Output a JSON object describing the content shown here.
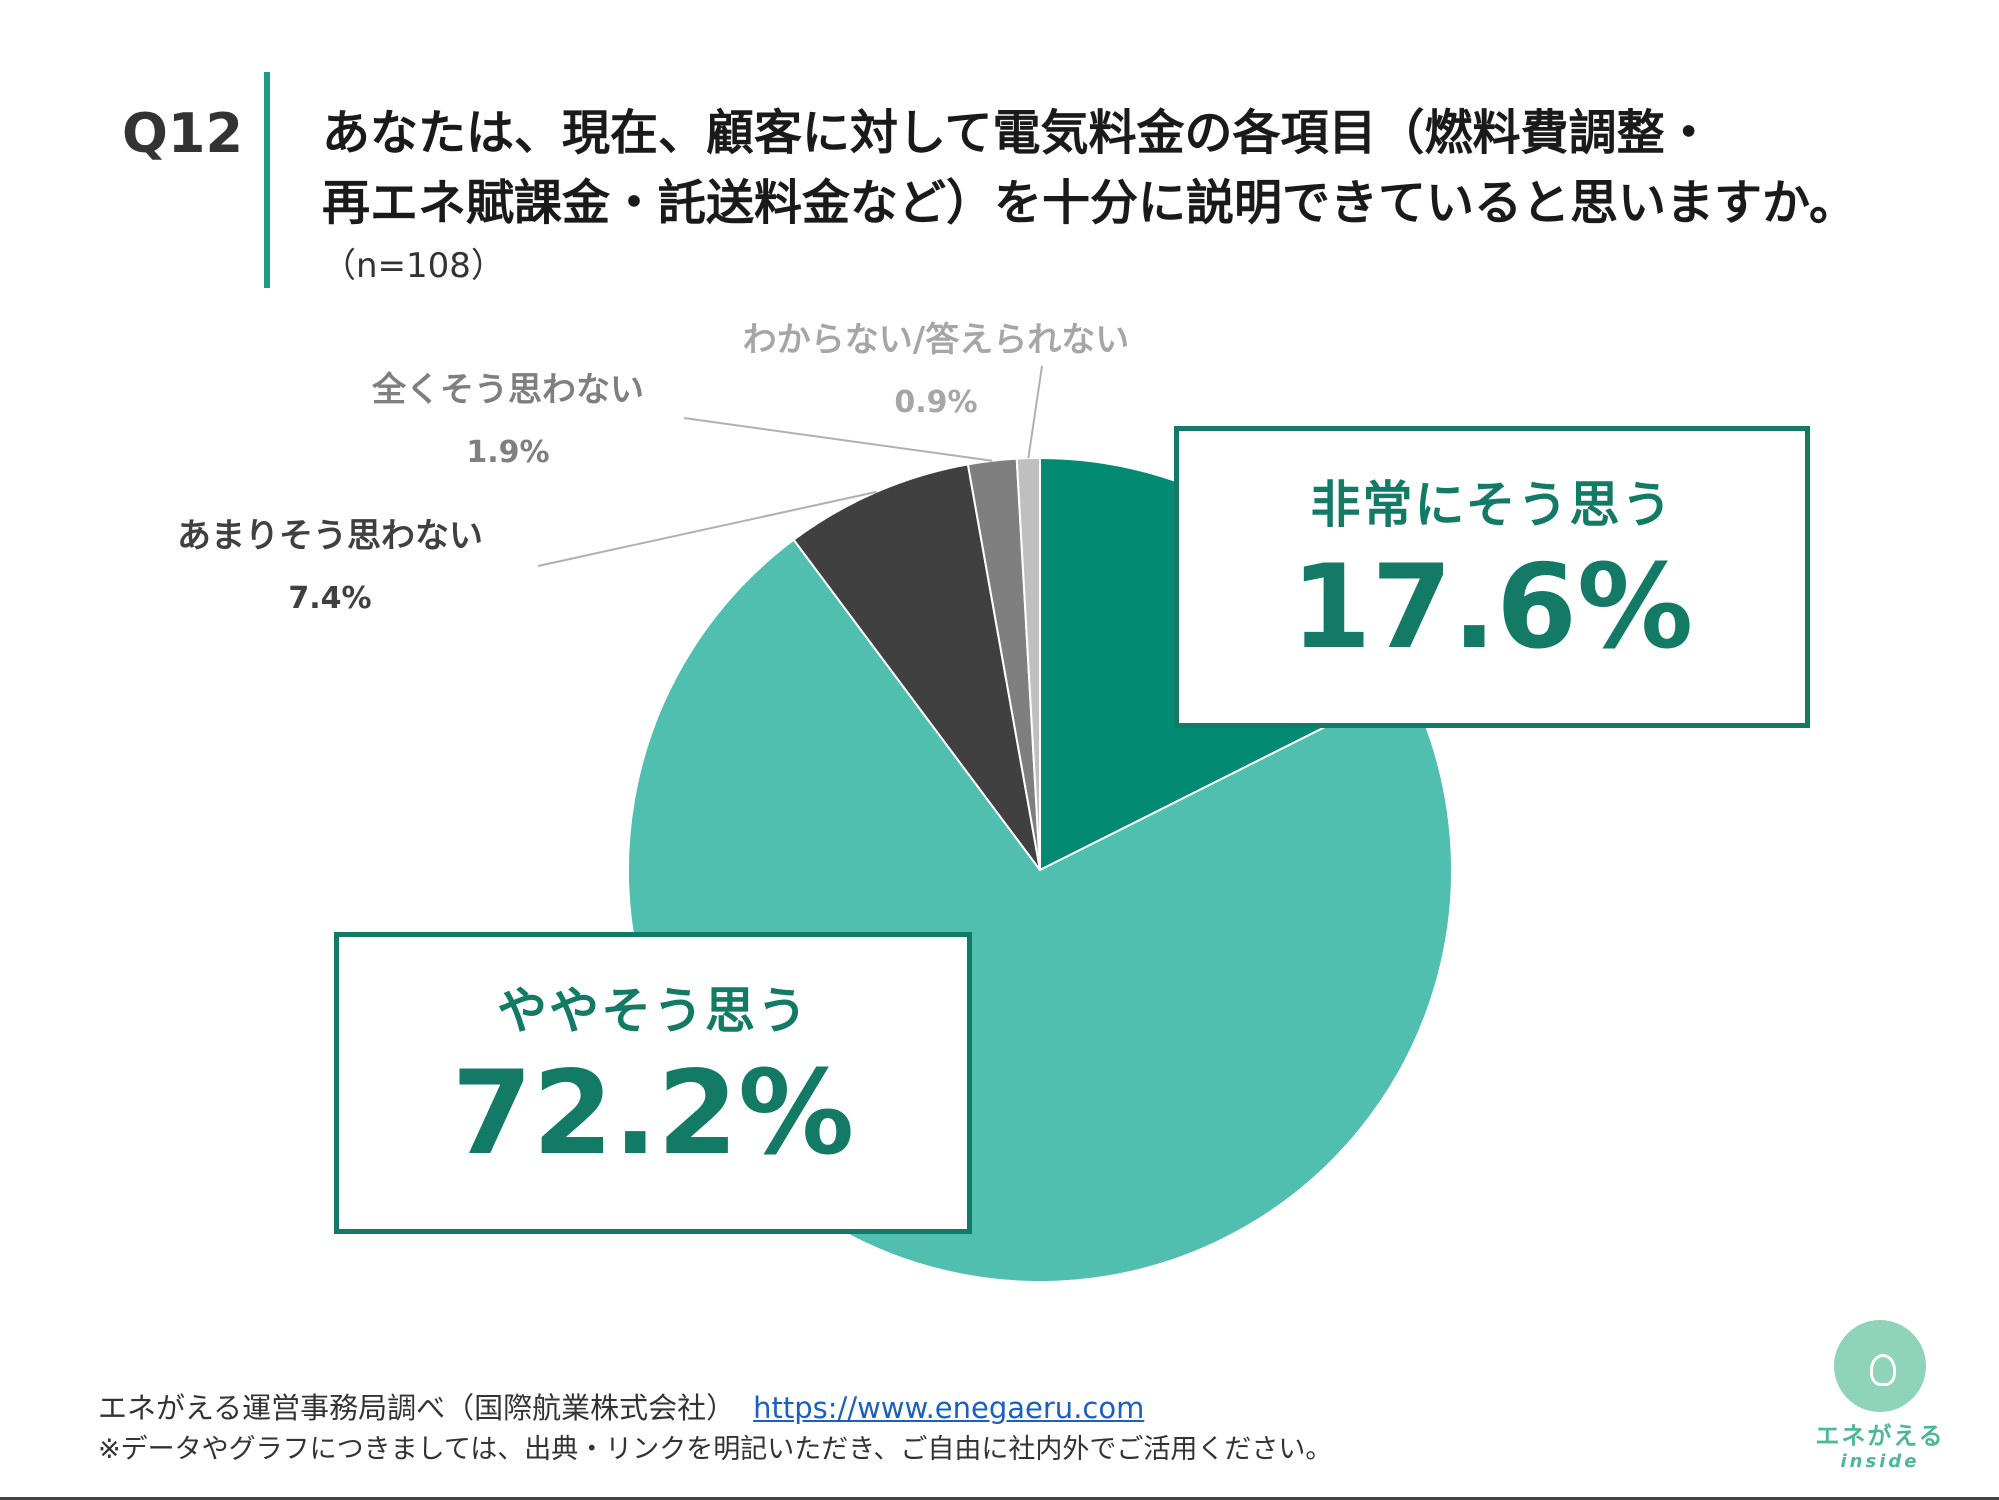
{
  "header": {
    "qnum": "Q12",
    "title_line1": "あなたは、現在、顧客に対して電気料金の各項目（燃料費調整・",
    "title_line2": "再エネ賦課金・託送料金など）を十分に説明できていると思いますか。",
    "n_label": "（n=108）"
  },
  "chart_data": {
    "type": "pie",
    "start": "12 o'clock, clockwise",
    "slices": [
      {
        "label": "非常にそう思う",
        "value": 17.6,
        "display": "17.6%",
        "color": "#038a73"
      },
      {
        "label": "ややそう思う",
        "value": 72.2,
        "display": "72.2%",
        "color": "#51bfaf"
      },
      {
        "label": "あまりそう思わない",
        "value": 7.4,
        "display": "7.4%",
        "color": "#404040"
      },
      {
        "label": "全くそう思わない",
        "value": 1.9,
        "display": "1.9%",
        "color": "#7f7f7f"
      },
      {
        "label": "わからない/答えられない",
        "value": 0.9,
        "display": "0.9%",
        "color": "#bfbfbf"
      }
    ]
  },
  "label_colors": {
    "あまりそう思わない": "#404040",
    "全くそう思わない": "#7f7f7f",
    "わからない/答えられない": "#a6a6a6"
  },
  "footer": {
    "source": "エネがえる運営事務局調べ（国際航業株式会社）",
    "url": "https://www.enegaeru.com",
    "note": "※データやグラフにつきましては、出典・リンクを明記いただき、ご自由に社内外でご活用ください。"
  },
  "logo": {
    "name": "エネがえる",
    "sub": "inside",
    "icon": "lightbulb-mascot-icon"
  }
}
